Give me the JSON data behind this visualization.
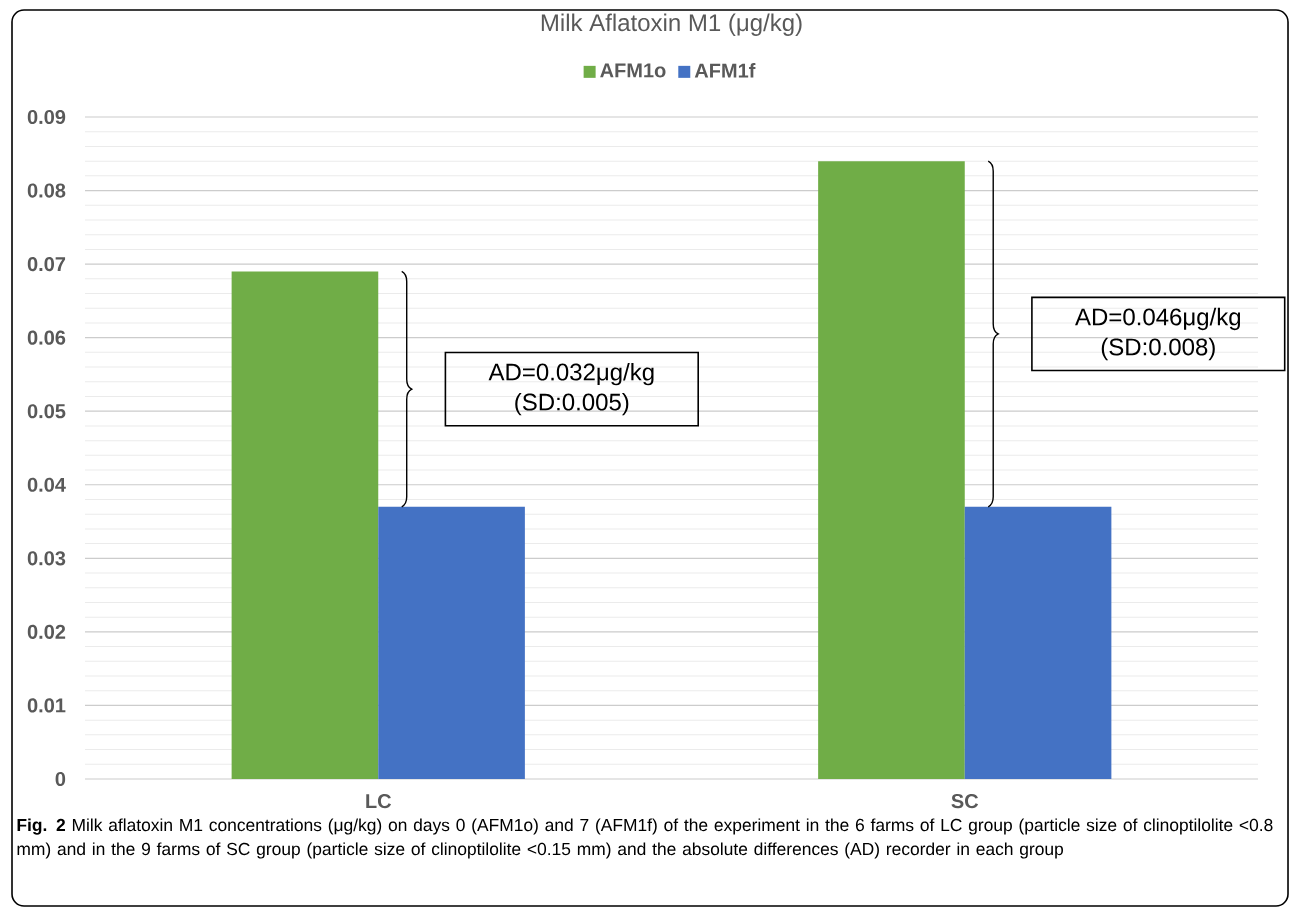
{
  "chart_data": {
    "type": "bar",
    "title": "Milk  Aflatoxin M1 (μg/kg)",
    "categories": [
      "LC",
      "SC"
    ],
    "series": [
      {
        "name": "AFM1o",
        "color": "#70ad47",
        "values": [
          0.069,
          0.084
        ]
      },
      {
        "name": "AFM1f",
        "color": "#4472c4",
        "values": [
          0.037,
          0.037
        ]
      }
    ],
    "ylim": [
      0,
      0.09
    ],
    "yticks": [
      0,
      0.01,
      0.02,
      0.03,
      0.04,
      0.05,
      0.06,
      0.07,
      0.08,
      0.09
    ],
    "grid": "y",
    "legend": "top",
    "annotations": [
      "AD=0.032μg/kg (SD:0.005)",
      "AD=0.046μg/kg (SD:0.008)",
      "**Fig. 2** Milk aflatoxin M1 concentrations (μg/kg) on days 0 (AFM1o) and 7 (AFM1f) of the experiment in the 6 farms of LC group (particle size of clinoptilolite <0.8 mm) and in the 9 farms of SC group (particle size of clinoptilolite <0.15 mm) and the absolute differences (AD) recorder in each group"
    ]
  }
}
